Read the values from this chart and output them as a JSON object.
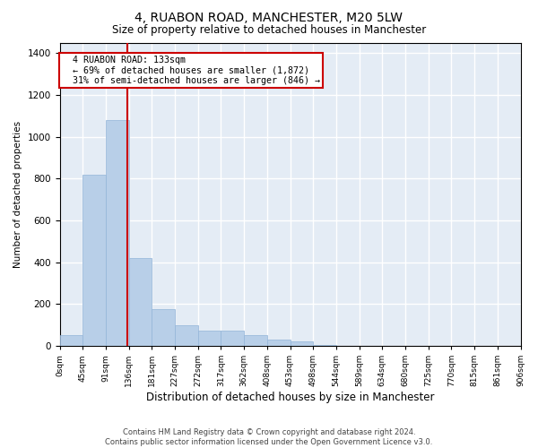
{
  "title": "4, RUABON ROAD, MANCHESTER, M20 5LW",
  "subtitle": "Size of property relative to detached houses in Manchester",
  "xlabel": "Distribution of detached houses by size in Manchester",
  "ylabel": "Number of detached properties",
  "bar_color": "#b8cfe8",
  "bar_edge_color": "#92b4d8",
  "background_color": "#e4ecf5",
  "grid_color": "#ffffff",
  "annotation_text": "  4 RUABON ROAD: 133sqm\n  ← 69% of detached houses are smaller (1,872)\n  31% of semi-detached houses are larger (846) →",
  "annotation_box_color": "#ffffff",
  "annotation_border_color": "#cc0000",
  "vline_x": 133,
  "vline_color": "#cc0000",
  "bin_edges": [
    0,
    45,
    91,
    136,
    181,
    227,
    272,
    317,
    362,
    408,
    453,
    498,
    544,
    589,
    634,
    680,
    725,
    770,
    815,
    861,
    906
  ],
  "bar_heights": [
    50,
    820,
    1080,
    420,
    175,
    100,
    75,
    75,
    50,
    30,
    20,
    5,
    0,
    0,
    0,
    0,
    0,
    0,
    0,
    0
  ],
  "ylim": [
    0,
    1450
  ],
  "yticks": [
    0,
    200,
    400,
    600,
    800,
    1000,
    1200,
    1400
  ],
  "footer_text": "Contains HM Land Registry data © Crown copyright and database right 2024.\nContains public sector information licensed under the Open Government Licence v3.0.",
  "tick_labels": [
    "0sqm",
    "45sqm",
    "91sqm",
    "136sqm",
    "181sqm",
    "227sqm",
    "272sqm",
    "317sqm",
    "362sqm",
    "408sqm",
    "453sqm",
    "498sqm",
    "544sqm",
    "589sqm",
    "634sqm",
    "680sqm",
    "725sqm",
    "770sqm",
    "815sqm",
    "861sqm",
    "906sqm"
  ],
  "title_fontsize": 10,
  "subtitle_fontsize": 8.5,
  "ylabel_fontsize": 7.5,
  "xlabel_fontsize": 8.5
}
